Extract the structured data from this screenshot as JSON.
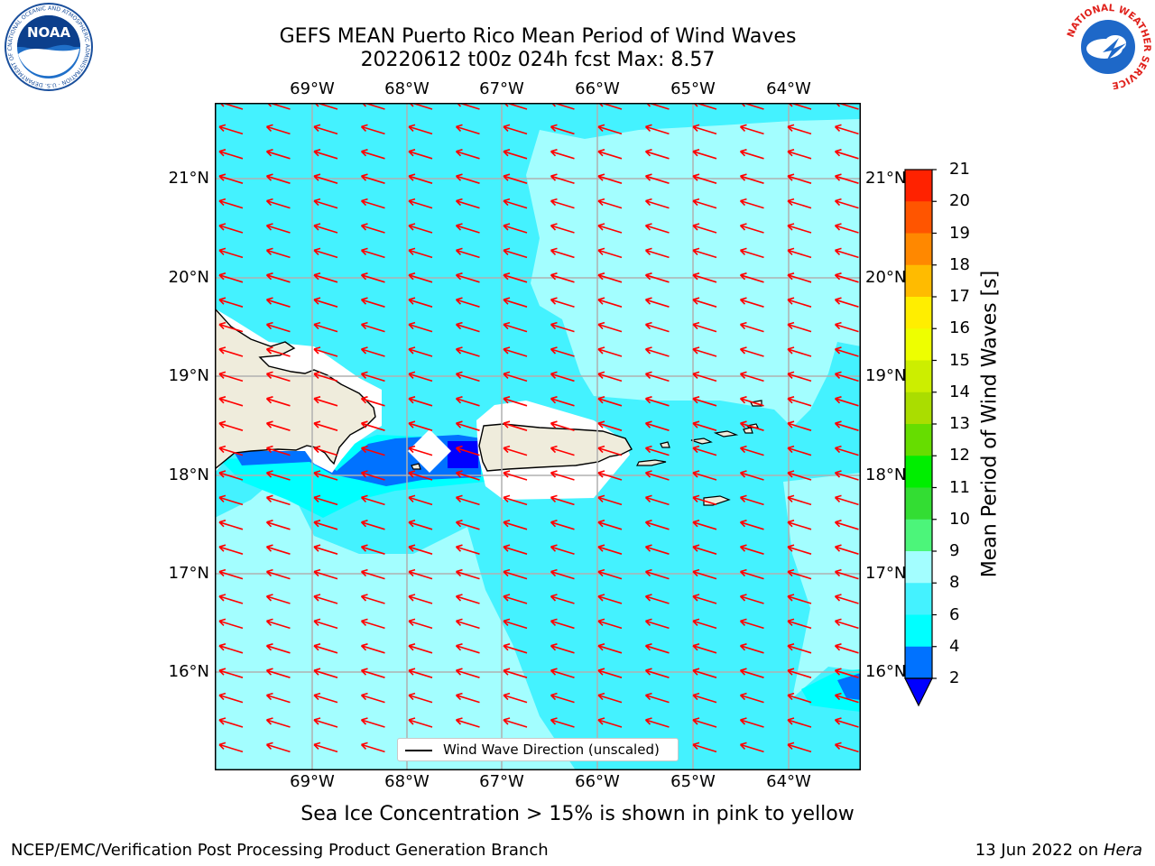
{
  "title": {
    "line1": "GEFS MEAN Puerto Rico Mean Period of Wind Waves",
    "line2": "20220612 t00z 024h fcst   Max: 8.57"
  },
  "axes": {
    "lon_labels": [
      "69°W",
      "68°W",
      "67°W",
      "66°W",
      "65°W",
      "64°W"
    ],
    "lat_labels": [
      "21°N",
      "20°N",
      "19°N",
      "18°N",
      "17°N",
      "16°N"
    ]
  },
  "legend": {
    "label": "Wind Wave Direction (unscaled)"
  },
  "colorbar": {
    "label": "Mean Period of Wind Waves [s]",
    "ticks": [
      "2",
      "4",
      "6",
      "8",
      "9",
      "10",
      "11",
      "12",
      "13",
      "14",
      "15",
      "16",
      "17",
      "18",
      "19",
      "20",
      "21"
    ],
    "colors": [
      "#0000ff",
      "#0072ff",
      "#00ffff",
      "#44f2ff",
      "#a3feff",
      "#4cf57a",
      "#33dd33",
      "#00ee00",
      "#66dd00",
      "#aadd00",
      "#ccee00",
      "#eeff00",
      "#ffee00",
      "#ffbb00",
      "#ff8800",
      "#ff5500",
      "#ff2200",
      "#ff0000"
    ],
    "extend_color": "#0000ff"
  },
  "map_colors": {
    "period_6_8": "#44f2ff",
    "period_8_9": "#a3feff",
    "period_4_6": "#00ffff",
    "period_2_4": "#0072ff",
    "period_below_2": "#0000ff",
    "land": "#efecdc",
    "arrow": "#ff0000",
    "grid": "#b0b0b0"
  },
  "footer": {
    "sea_ice_note": "Sea Ice Concentration > 15% is shown in pink to yellow",
    "left": "NCEP/EMC/Verification Post Processing Product Generation Branch",
    "right_prefix": "13 Jun 2022 on ",
    "right_machine": "Hera"
  },
  "logos": {
    "noaa_text": "NOAA",
    "noaa_ring_text": "NATIONAL OCEANIC AND ATMOSPHERIC ADMINISTRATION · U.S. DEPARTMENT OF COMMERCE",
    "nws_ring_text": "NATIONAL WEATHER SERVICE"
  }
}
